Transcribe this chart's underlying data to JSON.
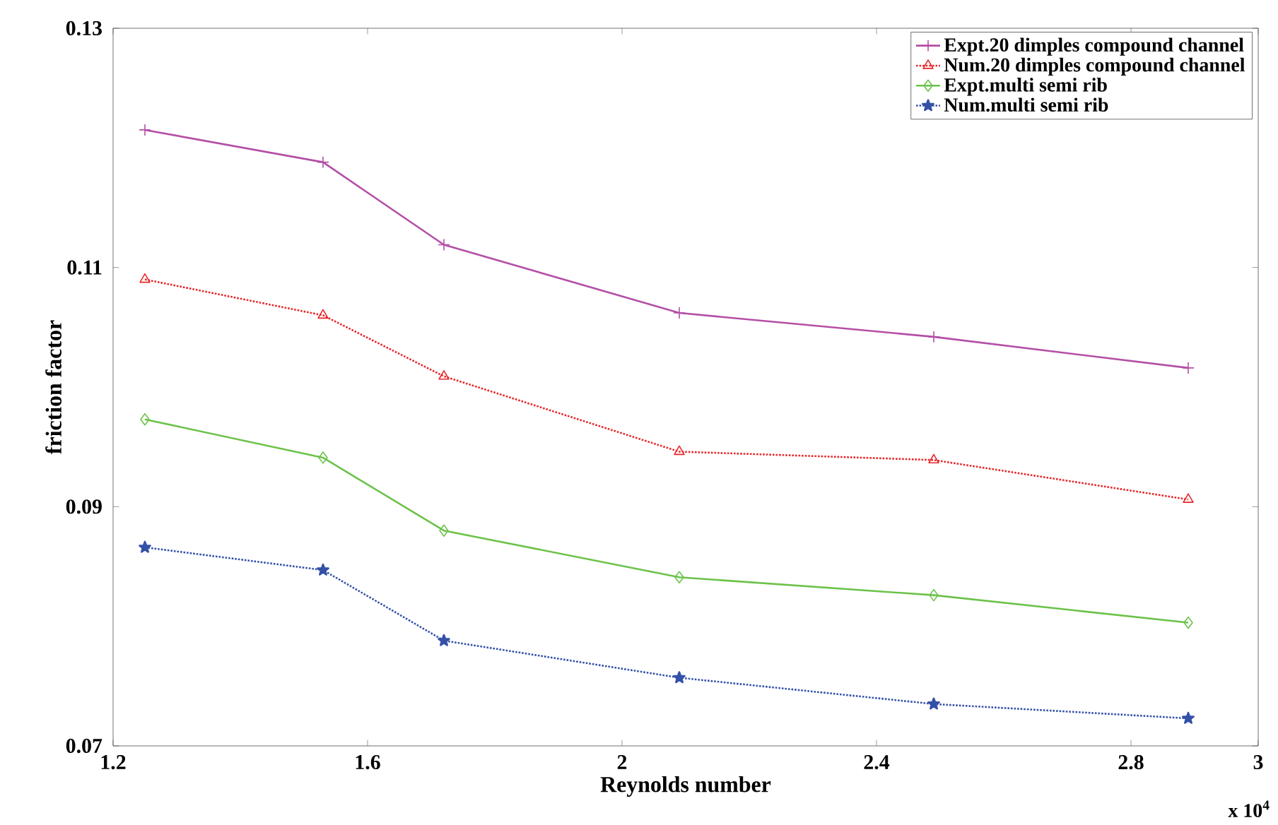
{
  "chart_data": {
    "type": "line",
    "xlabel": "Reynolds number",
    "ylabel": "friction factor",
    "annotations": [
      "x 10$^{4}$"
    ],
    "x": [
      1.25,
      1.53,
      1.72,
      2.09,
      2.49,
      2.89
    ],
    "xlim": [
      1.2,
      3
    ],
    "xticks": [
      1.2,
      1.6,
      2,
      2.4,
      2.8,
      3
    ],
    "ylim": [
      0.07,
      0.13
    ],
    "yticks": [
      0.07,
      0.09,
      0.11,
      0.13
    ],
    "legend": "top right",
    "grid": false,
    "series": [
      {
        "name": "Expt.20 dimples compound channel",
        "color": "#b44fa6",
        "marker": "cross",
        "line_style": "solid",
        "values": [
          0.1215,
          0.1188,
          0.1119,
          0.1062,
          0.1042,
          0.1016
        ]
      },
      {
        "name": "Num.20 dimples compound channel",
        "color": "#e8262a",
        "marker": "triangle",
        "line_style": "dotted",
        "values": [
          0.109,
          0.106,
          0.1009,
          0.0946,
          0.0939,
          0.0906
        ]
      },
      {
        "name": "Expt.multi semi rib",
        "color": "#6cc24a",
        "marker": "diamond",
        "line_style": "solid",
        "values": [
          0.0973,
          0.0941,
          0.088,
          0.0841,
          0.0826,
          0.0803
        ]
      },
      {
        "name": "Num.multi semi rib",
        "color": "#3451a8",
        "marker": "star",
        "line_style": "dotted",
        "values": [
          0.0866,
          0.0847,
          0.0788,
          0.0757,
          0.0735,
          0.0723
        ]
      }
    ]
  }
}
